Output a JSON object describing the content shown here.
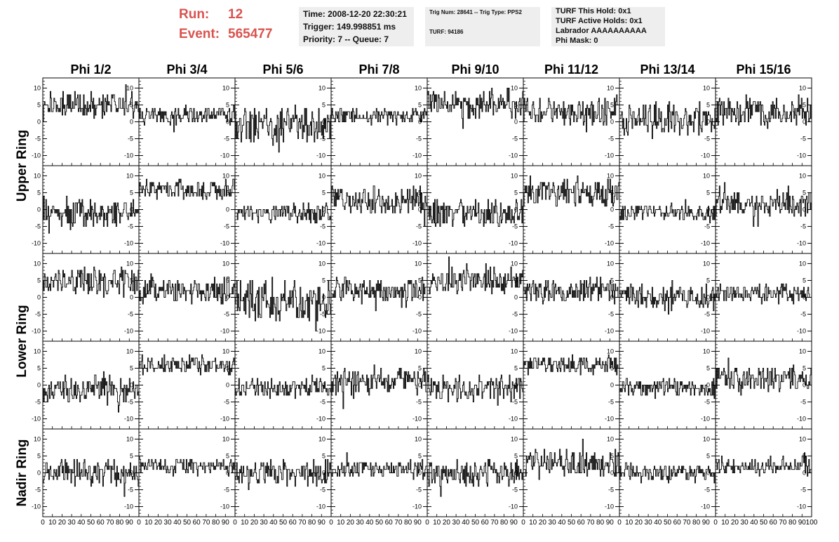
{
  "header": {
    "run_label": "Run:",
    "run_value": "12",
    "event_label": "Event:",
    "event_value": "565477",
    "time_line": "Time: 2008-12-20 22:30:21",
    "trigger_line": "Trigger: 149.998851 ms",
    "priority_line": "Priority: 7 -- Queue: 7",
    "trig_line": "Trig Num: 28641 -- Trig Type: PPS2",
    "turf_line": "TURF: 94186",
    "hold_line": "TURF This Hold: 0x1",
    "active_line": "TURF Active Holds: 0x1",
    "labrador_line": "Labrador AAAAAAAAAA",
    "phimask_line": "Phi Mask: 0"
  },
  "chart_data": {
    "type": "line",
    "columns": [
      "Phi 1/2",
      "Phi 3/4",
      "Phi 5/6",
      "Phi 7/8",
      "Phi 9/10",
      "Phi 11/12",
      "Phi 13/14",
      "Phi 15/16"
    ],
    "rows": [
      "Upper Ring",
      "Upper Ring",
      "Lower Ring",
      "Lower Ring",
      "Nadir Ring"
    ],
    "row_labels": [
      "Upper Ring",
      "Lower Ring",
      "Nadir Ring"
    ],
    "xlim": [
      0,
      100
    ],
    "ylim": [
      -13,
      13
    ],
    "yticks": [
      -10,
      -5,
      0,
      5,
      10
    ],
    "xtick_labels": [
      "0",
      "10",
      "20",
      "30",
      "40",
      "50",
      "60",
      "70",
      "80",
      "90",
      "100"
    ],
    "baselines": [
      [
        5,
        2,
        -1,
        2,
        5,
        3,
        1,
        3
      ],
      [
        -1,
        6,
        -1,
        3,
        -1,
        5,
        -1,
        2
      ],
      [
        5,
        2,
        -1,
        2,
        5,
        2,
        0,
        1
      ],
      [
        -1,
        6,
        -1,
        1,
        -1,
        6,
        -1,
        2
      ],
      [
        0,
        2,
        0,
        1,
        0,
        3,
        0,
        2
      ]
    ],
    "noise": [
      [
        3,
        2,
        4,
        2,
        3,
        3,
        4,
        3
      ],
      [
        3,
        2,
        2,
        3,
        3,
        3,
        2,
        3
      ],
      [
        3,
        3,
        5,
        3,
        3,
        3,
        3,
        2
      ],
      [
        3,
        2,
        2,
        3,
        3,
        2,
        2,
        3
      ],
      [
        3,
        2,
        3,
        2,
        3,
        3,
        2,
        2
      ]
    ],
    "seed": 12
  }
}
